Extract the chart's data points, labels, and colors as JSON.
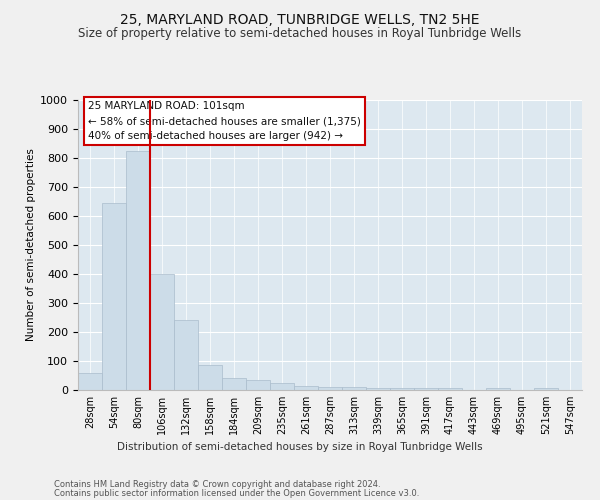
{
  "title": "25, MARYLAND ROAD, TUNBRIDGE WELLS, TN2 5HE",
  "subtitle": "Size of property relative to semi-detached houses in Royal Tunbridge Wells",
  "xlabel_bottom": "Distribution of semi-detached houses by size in Royal Tunbridge Wells",
  "ylabel": "Number of semi-detached properties",
  "footer1": "Contains HM Land Registry data © Crown copyright and database right 2024.",
  "footer2": "Contains public sector information licensed under the Open Government Licence v3.0.",
  "categories": [
    "28sqm",
    "54sqm",
    "80sqm",
    "106sqm",
    "132sqm",
    "158sqm",
    "184sqm",
    "209sqm",
    "235sqm",
    "261sqm",
    "287sqm",
    "313sqm",
    "339sqm",
    "365sqm",
    "391sqm",
    "417sqm",
    "443sqm",
    "469sqm",
    "495sqm",
    "521sqm",
    "547sqm"
  ],
  "values": [
    58,
    645,
    825,
    400,
    240,
    85,
    40,
    35,
    25,
    15,
    10,
    10,
    8,
    8,
    8,
    8,
    0,
    8,
    0,
    8,
    0
  ],
  "bar_color": "#ccdce8",
  "bar_edge_color": "#aabccc",
  "bar_linewidth": 0.5,
  "highlight_bar_index": 3,
  "highlight_line_color": "#cc0000",
  "ylim": [
    0,
    1000
  ],
  "yticks": [
    0,
    100,
    200,
    300,
    400,
    500,
    600,
    700,
    800,
    900,
    1000
  ],
  "annotation_text": "25 MARYLAND ROAD: 101sqm\n← 58% of semi-detached houses are smaller (1,375)\n40% of semi-detached houses are larger (942) →",
  "annotation_box_color": "#ffffff",
  "annotation_border_color": "#cc0000",
  "bg_color": "#dde8f0",
  "grid_color": "#ffffff",
  "title_fontsize": 10,
  "subtitle_fontsize": 8.5,
  "fig_bg_color": "#f0f0f0"
}
